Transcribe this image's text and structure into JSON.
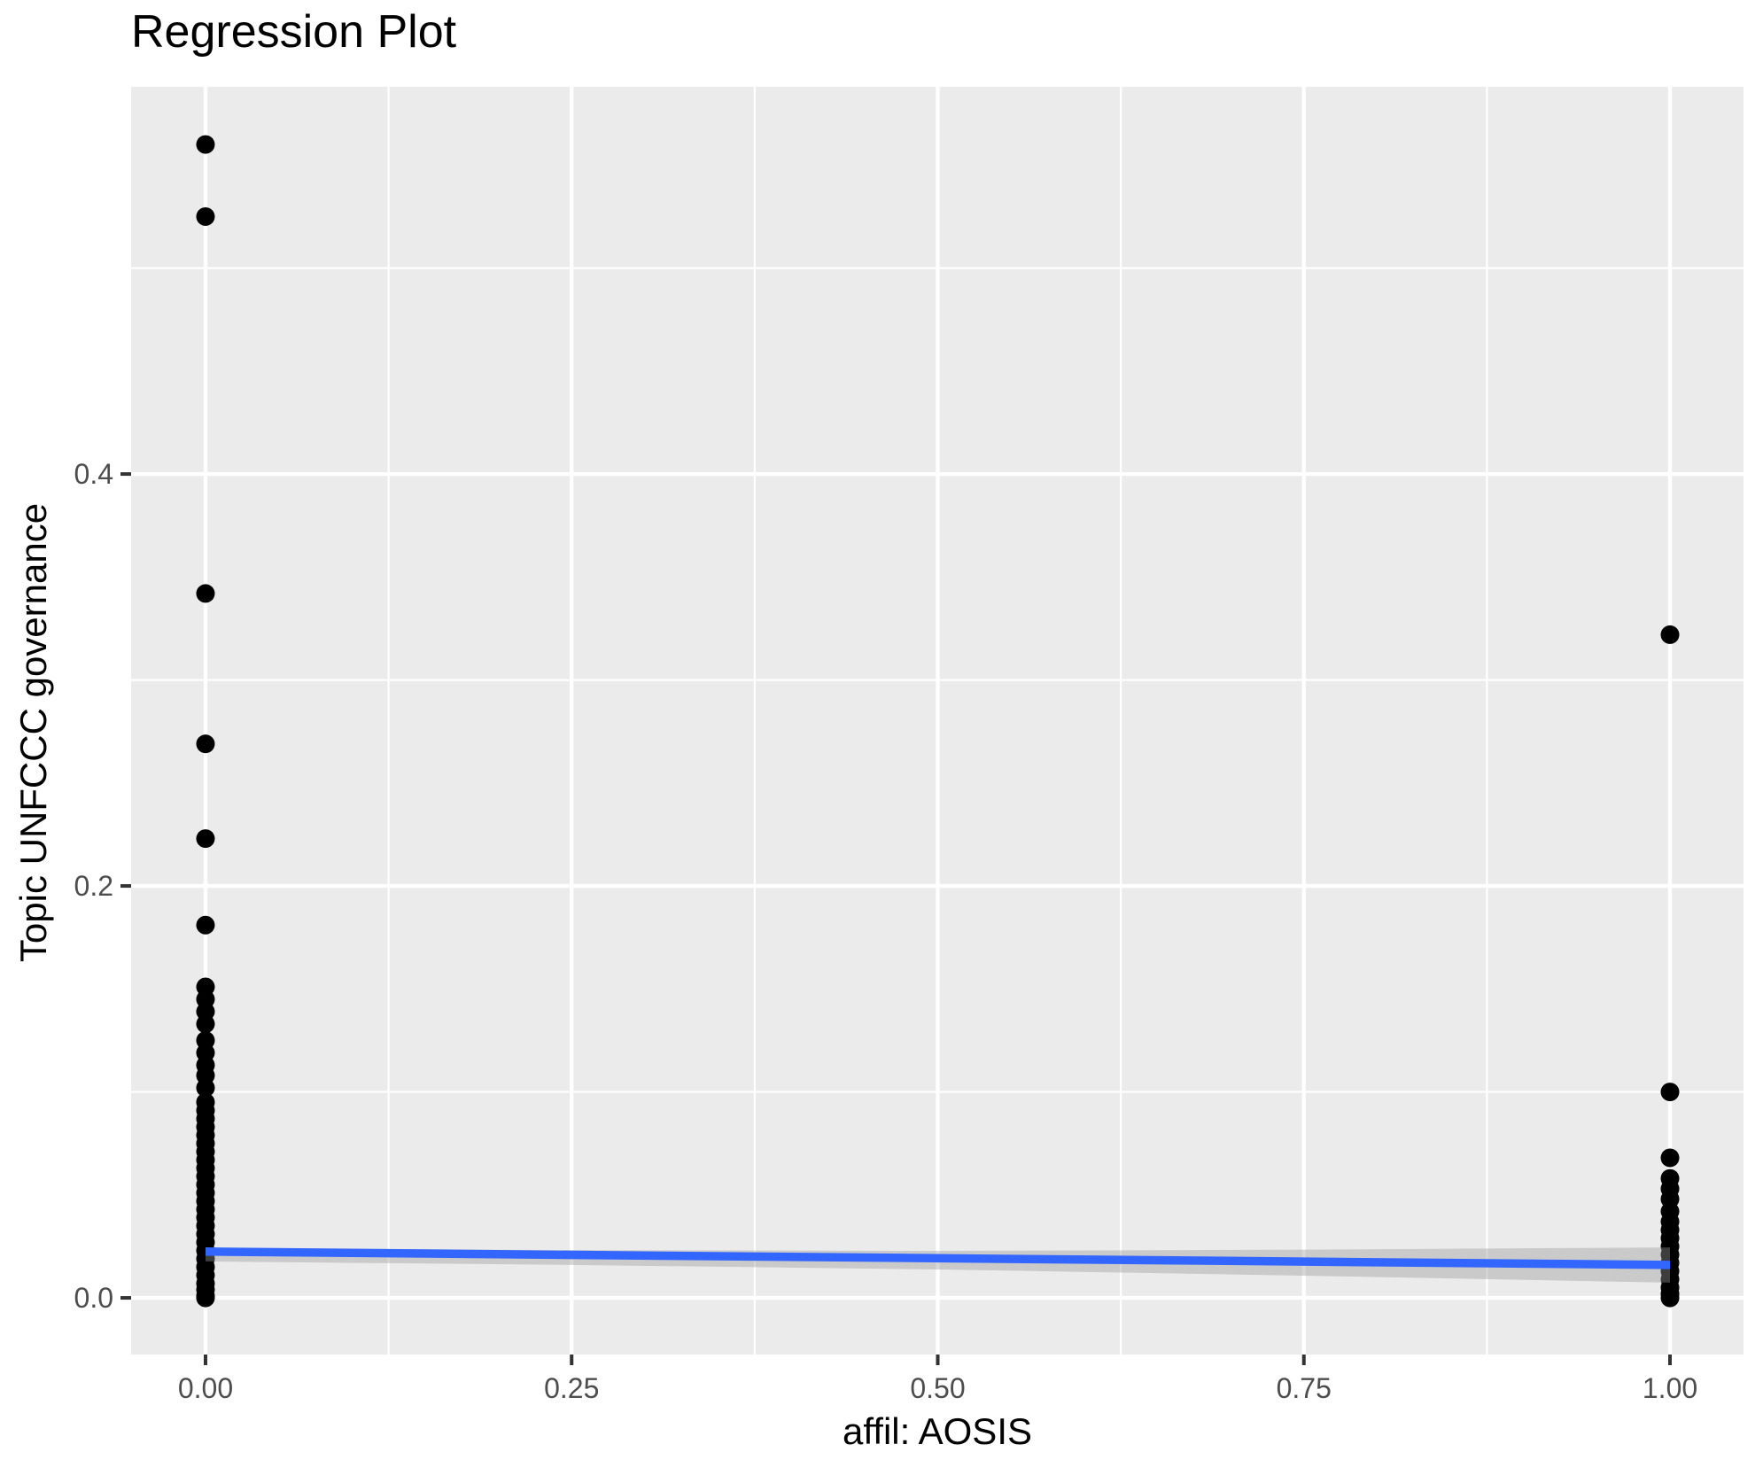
{
  "chart_data": {
    "type": "scatter",
    "title": "Regression Plot",
    "xlabel": "affil: AOSIS",
    "ylabel": "Topic UNFCCC governance",
    "legend": "none",
    "grid": "major-and-minor-white-on-gray",
    "xlim": [
      -0.0508,
      1.0502
    ],
    "ylim": [
      -0.0275,
      0.588
    ],
    "x_ticks": [
      {
        "value": 0.0,
        "label": "0.00"
      },
      {
        "value": 0.25,
        "label": "0.25"
      },
      {
        "value": 0.5,
        "label": "0.50"
      },
      {
        "value": 0.75,
        "label": "0.75"
      },
      {
        "value": 1.0,
        "label": "1.00"
      }
    ],
    "y_ticks": [
      {
        "value": 0.0,
        "label": "0.0"
      },
      {
        "value": 0.2,
        "label": "0.2"
      },
      {
        "value": 0.4,
        "label": "0.4"
      }
    ],
    "x_minor_ticks": [
      0.125,
      0.375,
      0.625,
      0.875
    ],
    "y_minor_ticks": [
      0.1,
      0.3,
      0.5
    ],
    "colors": {
      "panel_bg": "#EBEBEB",
      "grid": "#FFFFFF",
      "point": "#000000",
      "smooth_line": "#3366FF",
      "band": "#999999",
      "band_opacity": 0.4,
      "tick_mark": "#333333",
      "tick_label": "#4d4d4d",
      "title_text": "#000000"
    },
    "series": [
      {
        "name": "affil = 0",
        "x": 0,
        "y": [
          0.56,
          0.525,
          0.342,
          0.269,
          0.223,
          0.181,
          0.151,
          0.145,
          0.139,
          0.133,
          0.125,
          0.119,
          0.113,
          0.108,
          0.102,
          0.095,
          0.091,
          0.087,
          0.083,
          0.079,
          0.075,
          0.071,
          0.067,
          0.063,
          0.059,
          0.055,
          0.051,
          0.047,
          0.043,
          0.039,
          0.035,
          0.031,
          0.027,
          0.023,
          0.019,
          0.015,
          0.011,
          0.007,
          0.004,
          0.001,
          0.0
        ]
      },
      {
        "name": "affil = 1",
        "x": 1,
        "y": [
          0.322,
          0.1,
          0.068,
          0.058,
          0.053,
          0.048,
          0.042,
          0.037,
          0.033,
          0.029,
          0.025,
          0.021,
          0.017,
          0.013,
          0.009,
          0.005,
          0.002,
          0.0
        ]
      }
    ],
    "regression_line": {
      "x": [
        0,
        1
      ],
      "y": [
        0.0225,
        0.016
      ]
    },
    "confidence_band": {
      "x": [
        0.0,
        0.25,
        0.5,
        0.75,
        1.0
      ],
      "upper": [
        0.0241,
        0.0232,
        0.0228,
        0.0234,
        0.0245
      ],
      "lower": [
        0.0177,
        0.016,
        0.0138,
        0.0108,
        0.0074
      ]
    }
  }
}
